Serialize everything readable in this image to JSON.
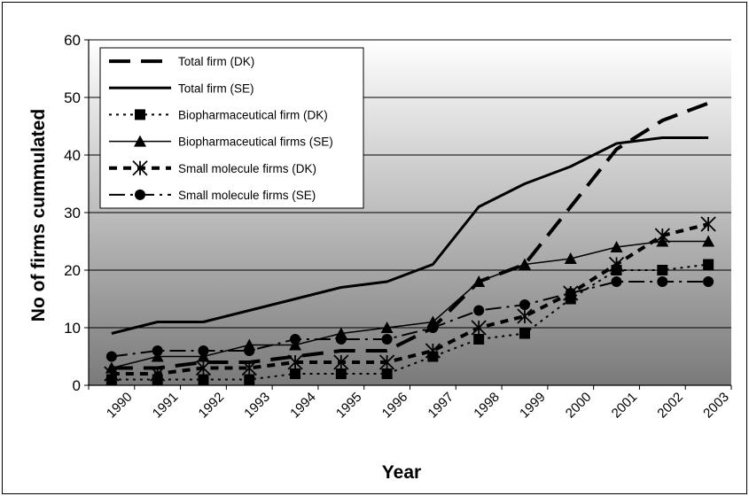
{
  "chart_data": {
    "type": "line",
    "title": "",
    "xlabel": "Year",
    "ylabel": "No of firms cummulated",
    "categories": [
      "1990",
      "1991",
      "1992",
      "1993",
      "1994",
      "1995",
      "1996",
      "1997",
      "1998",
      "1999",
      "2000",
      "2001",
      "2002",
      "2003"
    ],
    "ylim": [
      0,
      60
    ],
    "yticks": [
      0,
      10,
      20,
      30,
      40,
      50,
      60
    ],
    "grid": true,
    "legend_position": "top-left",
    "background": "gradient white-to-gray",
    "series": [
      {
        "name": "Total firm (DK)",
        "style": "long-dash",
        "marker": "none",
        "values": [
          3,
          3,
          4,
          4,
          5,
          6,
          6,
          10,
          18,
          21,
          31,
          41,
          46,
          49
        ]
      },
      {
        "name": "Total firm (SE)",
        "style": "solid-thick",
        "marker": "none",
        "values": [
          9,
          11,
          11,
          13,
          15,
          17,
          18,
          21,
          31,
          35,
          38,
          42,
          43,
          43
        ]
      },
      {
        "name": "Biopharmaceutical firm (DK)",
        "style": "dotted",
        "marker": "square",
        "values": [
          1,
          1,
          1,
          1,
          2,
          2,
          2,
          5,
          8,
          9,
          15,
          20,
          20,
          21
        ]
      },
      {
        "name": "Biopharmaceutical firms (SE)",
        "style": "solid-thin",
        "marker": "triangle",
        "values": [
          3,
          5,
          5,
          7,
          7,
          9,
          10,
          11,
          18,
          21,
          22,
          24,
          25,
          25
        ]
      },
      {
        "name": "Small molecule firms (DK)",
        "style": "short-dash",
        "marker": "star",
        "values": [
          2,
          2,
          3,
          3,
          4,
          4,
          4,
          6,
          10,
          12,
          16,
          21,
          26,
          28
        ]
      },
      {
        "name": "Small molecule firms (SE)",
        "style": "dash-dot",
        "marker": "circle",
        "values": [
          5,
          6,
          6,
          6,
          8,
          8,
          8,
          10,
          13,
          14,
          16,
          18,
          18,
          18
        ]
      }
    ]
  }
}
